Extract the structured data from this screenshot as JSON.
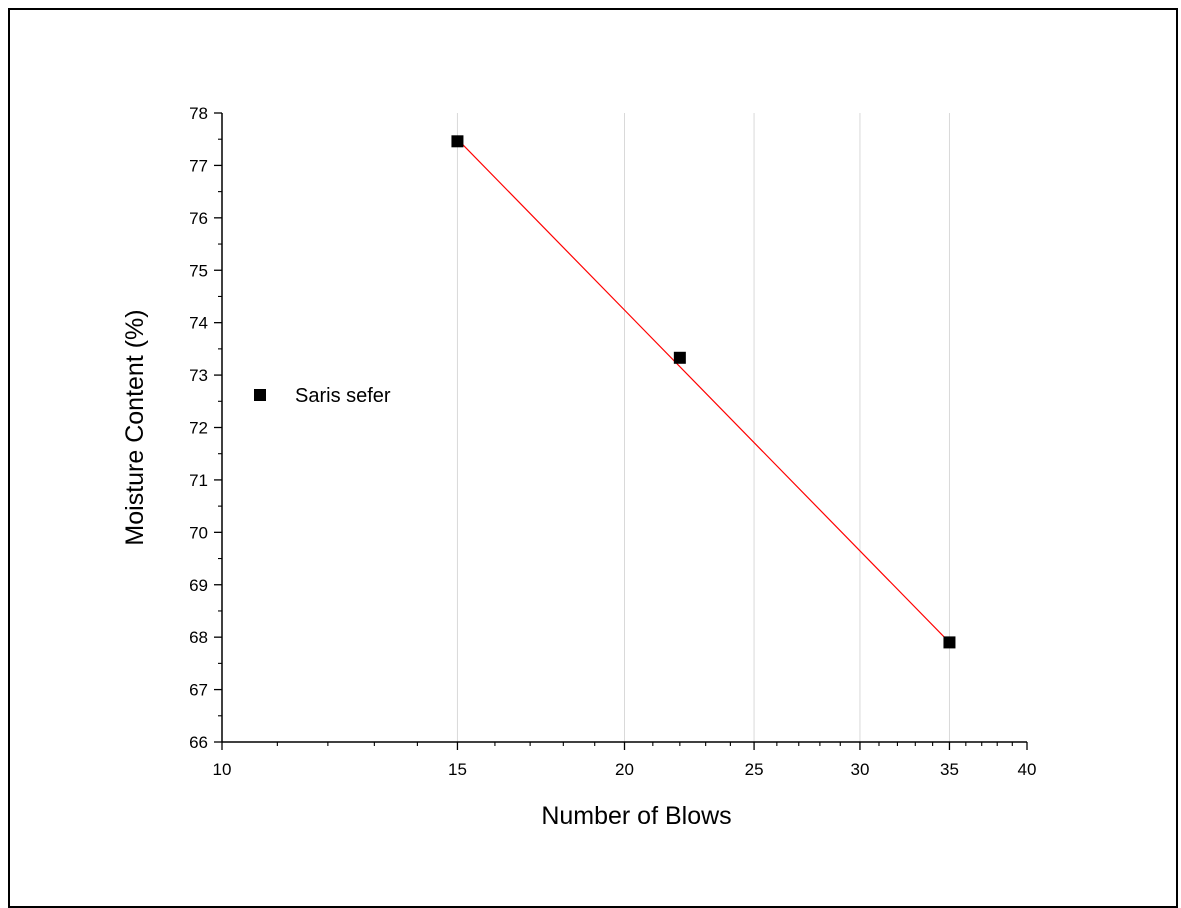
{
  "chart_data": {
    "type": "scatter",
    "title": "",
    "xlabel": "Number of Blows",
    "ylabel": "Moisture Content (%)",
    "xscale": "log",
    "xlim": [
      10,
      40
    ],
    "ylim": [
      66,
      78
    ],
    "x_ticks": [
      10,
      15,
      20,
      25,
      30,
      35,
      40
    ],
    "y_ticks": [
      66,
      67,
      68,
      69,
      70,
      71,
      72,
      73,
      74,
      75,
      76,
      77,
      78
    ],
    "grid": "vertical",
    "legend_position": "left",
    "series": [
      {
        "name": "Saris sefer",
        "marker": "square",
        "color": "#000000",
        "x": [
          15,
          22,
          35
        ],
        "y": [
          77.46,
          73.33,
          67.9
        ]
      }
    ],
    "fit_line": {
      "color": "#ff0000",
      "x": [
        15,
        35
      ],
      "y": [
        77.5,
        67.9
      ]
    }
  }
}
